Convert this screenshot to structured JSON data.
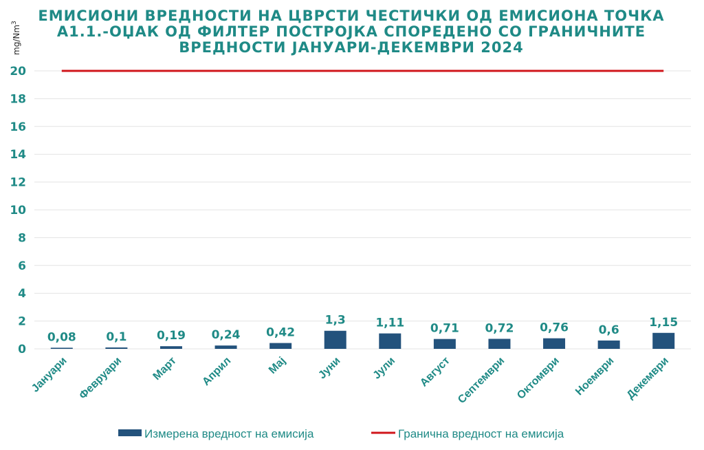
{
  "chart_data": {
    "type": "bar",
    "title_lines": [
      "ЕМИСИОНИ ВРЕДНОСТИ НА ЦВРСТИ ЧЕСТИЧКИ ОД ЕМИСИОНА ТОЧКА",
      "А1.1.-ОЏАК ОД ФИЛТЕР ПОСТРОЈКА СПОРЕДЕНО СО ГРАНИЧНИТЕ",
      "ВРЕДНОСТИ ЈАНУАРИ-ДЕКЕМВРИ 2024"
    ],
    "ylabel": "mg/Nm",
    "ylabel_sup": "3",
    "ylim": [
      0,
      20
    ],
    "yticks": [
      0,
      2,
      4,
      6,
      8,
      10,
      12,
      14,
      16,
      18,
      20
    ],
    "grid": true,
    "categories": [
      "Јануари",
      "Февруари",
      "Март",
      "Април",
      "Мај",
      "Јуни",
      "Јули",
      "Август",
      "Септември",
      "Октомври",
      "Ноември",
      "Декември"
    ],
    "series": [
      {
        "name": "Измерена вредност на емисија",
        "kind": "bar",
        "color": "#23527c",
        "values": [
          0.08,
          0.1,
          0.19,
          0.24,
          0.42,
          1.3,
          1.11,
          0.71,
          0.72,
          0.76,
          0.6,
          1.15
        ],
        "labels": [
          "0,08",
          "0,1",
          "0,19",
          "0,24",
          "0,42",
          "1,3",
          "1,11",
          "0,71",
          "0,72",
          "0,76",
          "0,6",
          "1,15"
        ]
      },
      {
        "name": "Гранична вредност на емисија",
        "kind": "line",
        "color": "#d0161b",
        "values": [
          20,
          20,
          20,
          20,
          20,
          20,
          20,
          20,
          20,
          20,
          20,
          20
        ]
      }
    ],
    "legend_position": "bottom"
  }
}
